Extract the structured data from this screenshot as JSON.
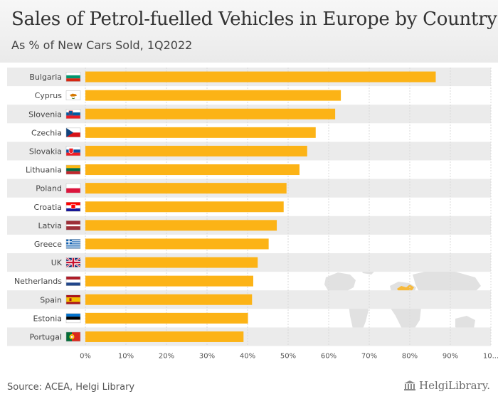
{
  "header": {
    "title": "Sales of Petrol-fuelled Vehicles in Europe by Country",
    "subtitle": "As % of New Cars Sold, 1Q2022"
  },
  "footer": {
    "source": "Source: ACEA, Helgi Library",
    "brand": "HelgiLibrary."
  },
  "colors": {
    "bar": "#fcb316",
    "row_alt": "#ebebeb",
    "text": "#444444"
  },
  "chart_data": {
    "type": "bar",
    "orientation": "horizontal",
    "categories": [
      "Bulgaria",
      "Cyprus",
      "Slovenia",
      "Czechia",
      "Slovakia",
      "Lithuania",
      "Poland",
      "Croatia",
      "Latvia",
      "Greece",
      "UK",
      "Netherlands",
      "Spain",
      "Estonia",
      "Portugal"
    ],
    "values": [
      86.4,
      63.0,
      61.6,
      56.8,
      54.7,
      52.8,
      49.6,
      48.9,
      47.2,
      45.2,
      42.5,
      41.4,
      41.1,
      40.1,
      39.0
    ],
    "unit": "%",
    "xlim": [
      0,
      100
    ],
    "xticks": [
      "0%",
      "10%",
      "20%",
      "30%",
      "40%",
      "50%",
      "60%",
      "70%",
      "80%",
      "90%",
      "10..."
    ],
    "grid": true,
    "flags": [
      "bulgaria-flag-icon",
      "cyprus-flag-icon",
      "slovenia-flag-icon",
      "czechia-flag-icon",
      "slovakia-flag-icon",
      "lithuania-flag-icon",
      "poland-flag-icon",
      "croatia-flag-icon",
      "latvia-flag-icon",
      "greece-flag-icon",
      "uk-flag-icon",
      "netherlands-flag-icon",
      "spain-flag-icon",
      "estonia-flag-icon",
      "portugal-flag-icon"
    ]
  }
}
